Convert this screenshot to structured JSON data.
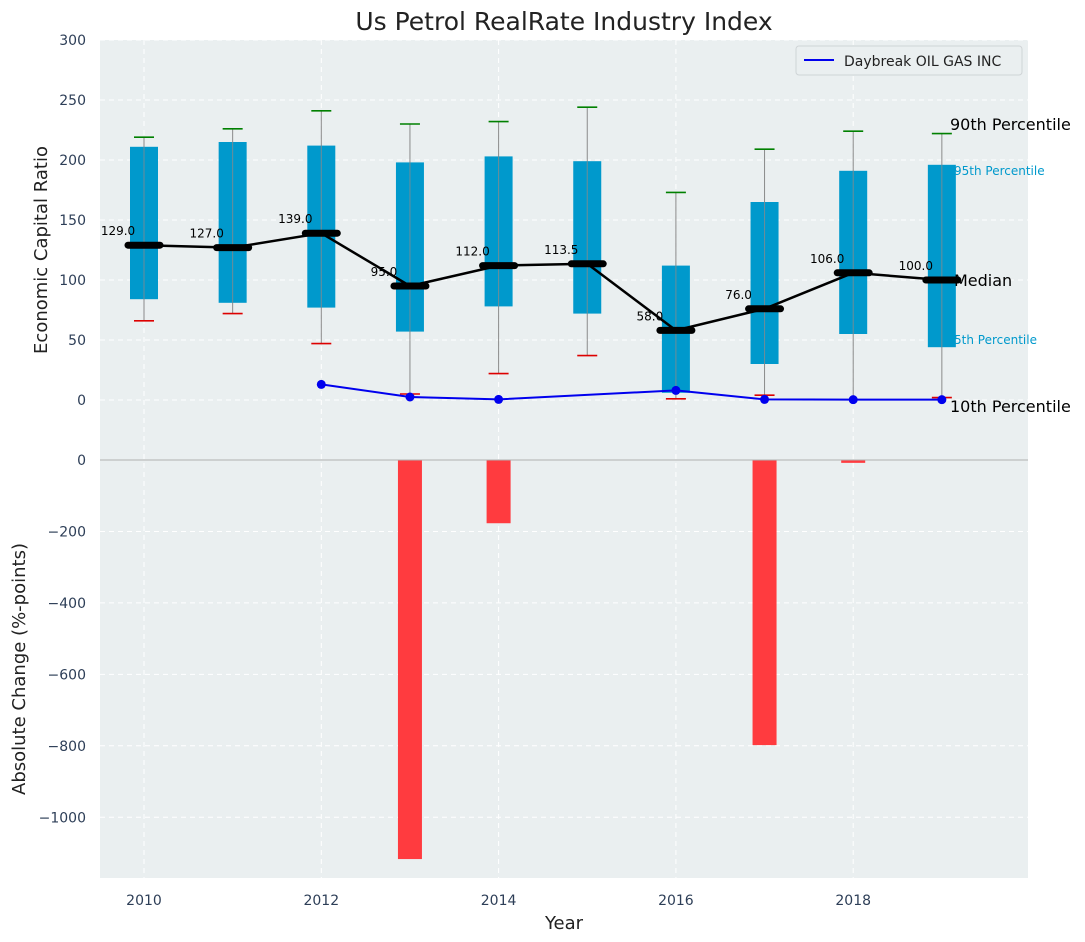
{
  "chart_data": {
    "title": "Us Petrol RealRate Industry Index",
    "xlabel": "Year",
    "years": [
      2010,
      2011,
      2012,
      2013,
      2014,
      2015,
      2016,
      2017,
      2018,
      2019
    ],
    "x_ticks": [
      2010,
      2012,
      2014,
      2016,
      2018
    ],
    "x_tick_labels": [
      "2010",
      "2012",
      "2014",
      "2016",
      "2018"
    ],
    "top": {
      "type": "box-percentile",
      "ylabel": "Economic Capital Ratio",
      "ylim": [
        0,
        300
      ],
      "y_ticks": [
        0,
        50,
        100,
        150,
        200,
        250,
        300
      ],
      "y_tick_labels": [
        "0",
        "50",
        "100",
        "150",
        "200",
        "250",
        "300"
      ],
      "p90": [
        219,
        226,
        241,
        230,
        232,
        244,
        173,
        209,
        224,
        222
      ],
      "p95": [
        211,
        215,
        212,
        198,
        203,
        199,
        112,
        165,
        191,
        196
      ],
      "median": [
        129.0,
        127.0,
        139.0,
        95.0,
        112.0,
        113.5,
        58.0,
        76.0,
        106.0,
        100.0
      ],
      "median_labels": [
        "129.0",
        "127.0",
        "139.0",
        "95.0",
        "112.0",
        "113.5",
        "58.0",
        "76.0",
        "106.0",
        "100.0"
      ],
      "p5": [
        84,
        81,
        77,
        57,
        78,
        72,
        6,
        30,
        55,
        44
      ],
      "p10": [
        66,
        72,
        47,
        5,
        22,
        37,
        1,
        4,
        null,
        2
      ],
      "company_series": {
        "name": "Daybreak OIL GAS INC",
        "years": [
          2012,
          2013,
          2014,
          2016,
          2017,
          2018,
          2019
        ],
        "values": [
          13,
          2.5,
          0.5,
          8,
          0.5,
          0.3,
          0.3
        ]
      },
      "legend": [
        "Daybreak OIL GAS INC"
      ],
      "legend_position": "top-right",
      "annotations": {
        "p90": "90th Percentile",
        "p95": "95th Percentile",
        "median": "Median",
        "p5": "5th Percentile",
        "p10": "10th Percentile"
      }
    },
    "bottom": {
      "type": "bar",
      "ylabel": "Absolute Change (%-points)",
      "ylim": [
        -1170,
        0
      ],
      "y_ticks": [
        0,
        -200,
        -400,
        -600,
        -800,
        -1000
      ],
      "y_tick_labels": [
        "0",
        "−200",
        "−400",
        "−600",
        "−800",
        "−1000"
      ],
      "bars": [
        {
          "year": 2013,
          "value": -1117
        },
        {
          "year": 2014,
          "value": -177
        },
        {
          "year": 2017,
          "value": -798
        },
        {
          "year": 2018,
          "value": -8
        }
      ]
    },
    "colors": {
      "plot_bg": "#eaeff0",
      "box": "#0099cc",
      "median": "#000000",
      "p90_cap": "#008000",
      "p10_cap": "#dd0000",
      "company_line": "#0000ee",
      "bars": "#ff3b3f",
      "whisker": "#8a8a8a",
      "tick_text": "#2d3e57",
      "pct_label": "#0099cc"
    }
  }
}
